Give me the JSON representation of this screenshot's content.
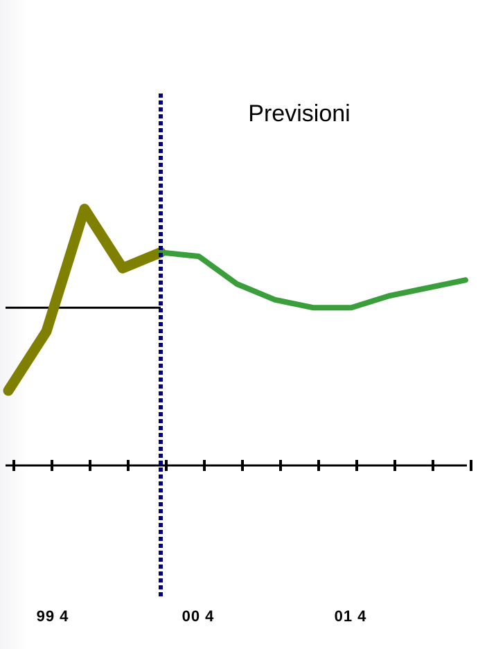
{
  "chart_data": {
    "type": "line",
    "title": "",
    "xlabel": "",
    "ylabel": "",
    "annotation": "Previsioni",
    "x_tick_labels": [
      "99 4",
      "00 4",
      "01 4"
    ],
    "x_domain": [
      0,
      12
    ],
    "y_domain": [
      0,
      10
    ],
    "forecast_start_x": 4,
    "reference_line": {
      "y": 4.4,
      "x_from": 0,
      "x_to": 4
    },
    "series": [
      {
        "kind": "historical",
        "color": "#808000",
        "points": [
          [
            0,
            2.3
          ],
          [
            1,
            3.8
          ],
          [
            2,
            6.9
          ],
          [
            3,
            5.4
          ],
          [
            4,
            5.8
          ]
        ]
      },
      {
        "kind": "forecast",
        "color": "#3a9e3a",
        "points": [
          [
            4,
            5.8
          ],
          [
            5,
            5.7
          ],
          [
            6,
            5.0
          ],
          [
            7,
            4.6
          ],
          [
            8,
            4.4
          ],
          [
            9,
            4.4
          ],
          [
            10,
            4.7
          ],
          [
            11,
            4.9
          ],
          [
            12,
            5.1
          ]
        ]
      }
    ],
    "colors": {
      "axis": "#000000",
      "divider": "#000080",
      "reference": "#000000"
    },
    "grid": false,
    "legend": "none"
  }
}
